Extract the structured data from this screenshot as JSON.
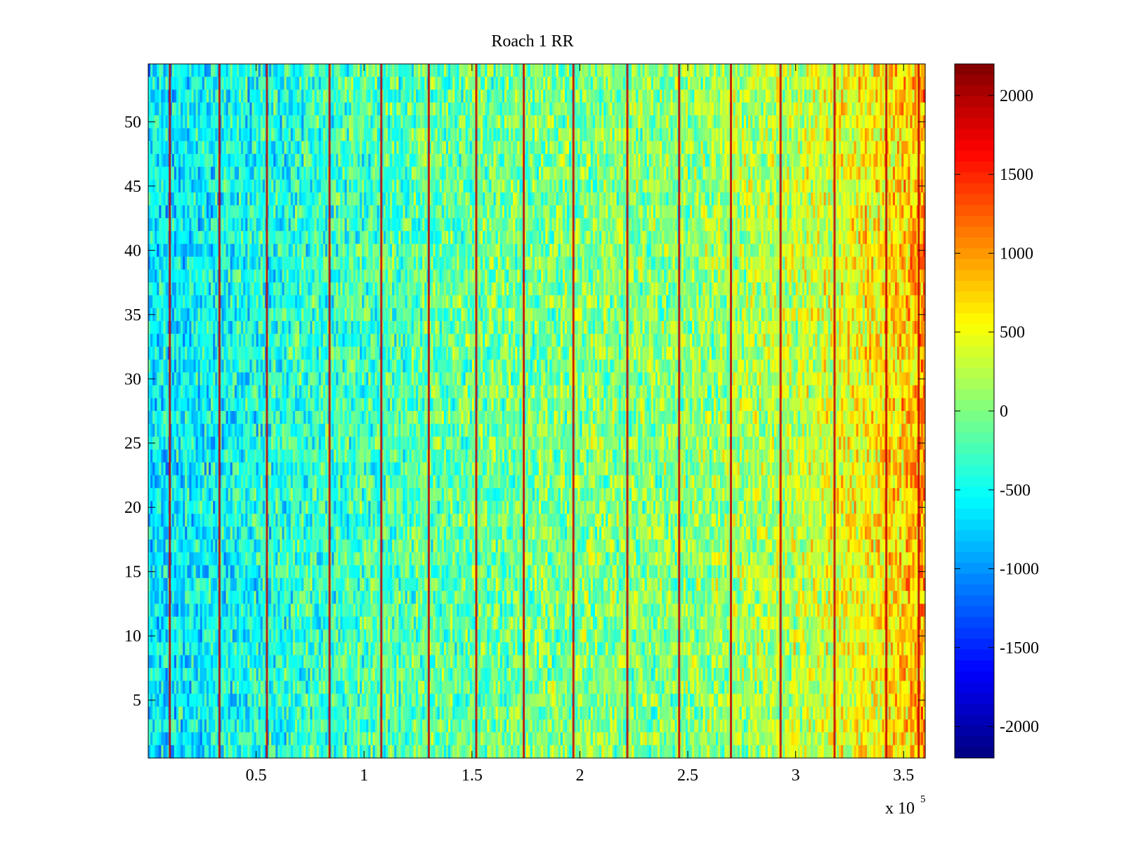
{
  "chart_data": {
    "type": "heatmap",
    "title": "Roach 1 RR",
    "xlabel": "",
    "ylabel": "",
    "x_multiplier_label": "x 10",
    "x_multiplier_exponent": "5",
    "xlim": [
      0,
      360000
    ],
    "ylim": [
      0.5,
      54.5
    ],
    "x_ticks": [
      {
        "value": 50000,
        "label": "0.5"
      },
      {
        "value": 100000,
        "label": "1"
      },
      {
        "value": 150000,
        "label": "1.5"
      },
      {
        "value": 200000,
        "label": "2"
      },
      {
        "value": 250000,
        "label": "2.5"
      },
      {
        "value": 300000,
        "label": "3"
      },
      {
        "value": 350000,
        "label": "3.5"
      }
    ],
    "y_ticks": [
      {
        "value": 5,
        "label": "5"
      },
      {
        "value": 10,
        "label": "10"
      },
      {
        "value": 15,
        "label": "15"
      },
      {
        "value": 20,
        "label": "20"
      },
      {
        "value": 25,
        "label": "25"
      },
      {
        "value": 30,
        "label": "30"
      },
      {
        "value": 35,
        "label": "35"
      },
      {
        "value": 40,
        "label": "40"
      },
      {
        "value": 45,
        "label": "45"
      },
      {
        "value": 50,
        "label": "50"
      }
    ],
    "colorbar": {
      "colormap": "jet",
      "clim": [
        -2200,
        2200
      ],
      "ticks": [
        {
          "value": 2000,
          "label": "2000"
        },
        {
          "value": 1500,
          "label": "1500"
        },
        {
          "value": 1000,
          "label": "1000"
        },
        {
          "value": 500,
          "label": "500"
        },
        {
          "value": 0,
          "label": "0"
        },
        {
          "value": -500,
          "label": "-500"
        },
        {
          "value": -1000,
          "label": "-1000"
        },
        {
          "value": -1500,
          "label": "-1500"
        },
        {
          "value": -2000,
          "label": "-2000"
        }
      ]
    },
    "rows": 54,
    "baseline_trend": [
      {
        "x": 0,
        "value": -650
      },
      {
        "x": 50000,
        "value": -450
      },
      {
        "x": 100000,
        "value": -250
      },
      {
        "x": 150000,
        "value": -100
      },
      {
        "x": 200000,
        "value": 0
      },
      {
        "x": 250000,
        "value": 50
      },
      {
        "x": 300000,
        "value": 250
      },
      {
        "x": 340000,
        "value": 600
      },
      {
        "x": 360000,
        "value": 900
      }
    ],
    "spike_columns": [
      10000,
      33000,
      55000,
      84000,
      108000,
      130000,
      152000,
      174000,
      197000,
      222000,
      246000,
      270000,
      293000,
      318000,
      342000,
      357000
    ],
    "spike_value": 1900
  }
}
